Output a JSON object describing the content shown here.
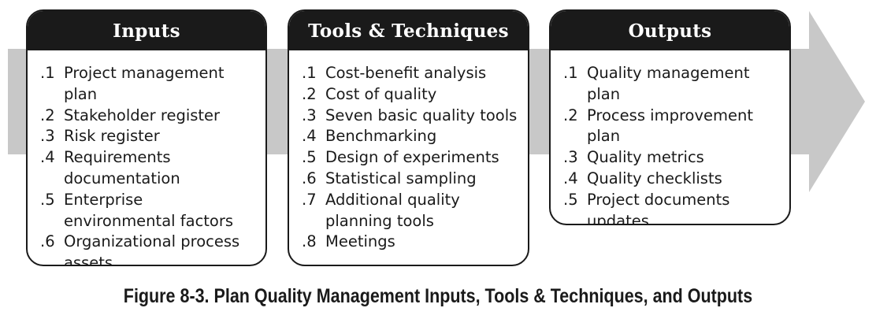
{
  "colors": {
    "arrow": "#c8c8c8",
    "box_border": "#1a1a1a",
    "header_bg": "#1a1a1a",
    "header_text": "#ffffff",
    "text": "#1a1a1a"
  },
  "inputs": {
    "title": "Inputs",
    "items": [
      {
        "num": ".1",
        "text": "Project management plan"
      },
      {
        "num": ".2",
        "text": "Stakeholder register"
      },
      {
        "num": ".3",
        "text": "Risk register"
      },
      {
        "num": ".4",
        "text": "Requirements documentation"
      },
      {
        "num": ".5",
        "text": "Enterprise environmental factors"
      },
      {
        "num": ".6",
        "text": "Organizational process assets"
      }
    ]
  },
  "tools": {
    "title": "Tools & Techniques",
    "items": [
      {
        "num": ".1",
        "text": "Cost-benefit analysis"
      },
      {
        "num": ".2",
        "text": "Cost of quality"
      },
      {
        "num": ".3",
        "text": "Seven basic quality tools"
      },
      {
        "num": ".4",
        "text": "Benchmarking"
      },
      {
        "num": ".5",
        "text": "Design of experiments"
      },
      {
        "num": ".6",
        "text": "Statistical sampling"
      },
      {
        "num": ".7",
        "text": "Additional quality planning tools"
      },
      {
        "num": ".8",
        "text": "Meetings"
      }
    ]
  },
  "outputs": {
    "title": "Outputs",
    "items": [
      {
        "num": ".1",
        "text": "Quality management plan"
      },
      {
        "num": ".2",
        "text": "Process improvement plan"
      },
      {
        "num": ".3",
        "text": "Quality metrics"
      },
      {
        "num": ".4",
        "text": "Quality checklists"
      },
      {
        "num": ".5",
        "text": "Project documents updates"
      }
    ]
  },
  "caption": "Figure 8-3. Plan Quality Management Inputs, Tools & Techniques, and Outputs"
}
